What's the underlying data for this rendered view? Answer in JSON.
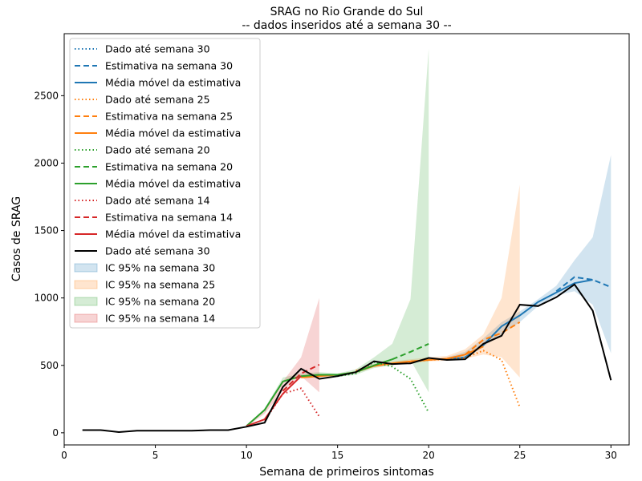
{
  "chart_data": {
    "type": "line",
    "title": "SRAG no Rio Grande do Sul",
    "subtitle": "-- dados inseridos até a semana 30 --",
    "xlabel": "Semana de primeiros sintomas",
    "ylabel": "Casos de SRAG",
    "xlim": [
      0,
      31
    ],
    "ylim": [
      -90,
      2960
    ],
    "xticks": [
      0,
      5,
      10,
      15,
      20,
      25,
      30
    ],
    "yticks": [
      0,
      500,
      1000,
      1500,
      2000,
      2500
    ],
    "grid": false,
    "legend_position": "top-left",
    "colors": {
      "w30": "#1f77b4",
      "w25": "#ff7f0e",
      "w20": "#2ca02c",
      "w14": "#d62728",
      "final": "#000000"
    },
    "bands": [
      {
        "name": "IC 95% na semana 30",
        "color": "#1f77b4",
        "x": [
          21,
          22,
          23,
          24,
          25,
          26,
          27,
          28,
          29,
          30
        ],
        "lower": [
          540,
          545,
          640,
          730,
          820,
          940,
          1020,
          1050,
          950,
          590
        ],
        "upper": [
          560,
          600,
          700,
          820,
          900,
          990,
          1090,
          1280,
          1450,
          2060
        ]
      },
      {
        "name": "IC 95% na semana 25",
        "color": "#ff7f0e",
        "x": [
          16,
          17,
          18,
          19,
          20,
          21,
          22,
          23,
          24,
          25
        ],
        "lower": [
          450,
          490,
          505,
          520,
          530,
          535,
          550,
          580,
          560,
          410
        ],
        "upper": [
          470,
          510,
          530,
          545,
          560,
          570,
          620,
          730,
          1000,
          1840
        ]
      },
      {
        "name": "IC 95% na semana 20",
        "color": "#2ca02c",
        "x": [
          11,
          12,
          13,
          14,
          15,
          16,
          17,
          18,
          19,
          20
        ],
        "lower": [
          150,
          380,
          410,
          420,
          415,
          430,
          480,
          500,
          540,
          300
        ],
        "upper": [
          180,
          410,
          440,
          450,
          440,
          470,
          560,
          660,
          990,
          2850
        ]
      },
      {
        "name": "IC 95% na semana 14",
        "color": "#d62728",
        "x": [
          10,
          11,
          12,
          13,
          14
        ],
        "lower": [
          45,
          140,
          310,
          420,
          300
        ],
        "upper": [
          60,
          160,
          380,
          560,
          1000
        ]
      }
    ],
    "series": [
      {
        "name": "Dado até semana 30",
        "color": "#1f77b4",
        "dash": "dotted",
        "x": [],
        "y": []
      },
      {
        "name": "Estimativa na semana 30",
        "color": "#1f77b4",
        "dash": "dashed",
        "x": [
          27,
          28,
          29,
          30
        ],
        "y": [
          1050,
          1155,
          1135,
          1080
        ]
      },
      {
        "name": "Média móvel da estimativa",
        "color": "#1f77b4",
        "dash": "solid",
        "x": [
          21,
          22,
          23,
          24,
          25,
          26,
          27,
          28,
          29
        ],
        "y": [
          545,
          560,
          650,
          790,
          870,
          970,
          1040,
          1110,
          1135
        ]
      },
      {
        "name": "Dado até semana 25",
        "color": "#ff7f0e",
        "dash": "dotted",
        "x": [
          16,
          17,
          18,
          19,
          20,
          21,
          22,
          23,
          24,
          25
        ],
        "y": [
          460,
          500,
          510,
          525,
          540,
          545,
          555,
          610,
          540,
          190
        ]
      },
      {
        "name": "Estimativa na semana 25",
        "color": "#ff7f0e",
        "dash": "dashed",
        "x": [
          22,
          23,
          24,
          25
        ],
        "y": [
          580,
          690,
          740,
          820
        ]
      },
      {
        "name": "Média móvel da estimativa",
        "color": "#ff7f0e",
        "dash": "solid",
        "x": [
          13,
          14,
          15,
          16,
          17,
          18,
          19,
          20,
          21,
          22,
          23
        ],
        "y": [
          410,
          420,
          430,
          450,
          495,
          515,
          530,
          540,
          550,
          580,
          640
        ]
      },
      {
        "name": "Dado até semana 20",
        "color": "#2ca02c",
        "dash": "dotted",
        "x": [
          15,
          16,
          17,
          18,
          19,
          20
        ],
        "y": [
          420,
          440,
          525,
          490,
          400,
          150
        ]
      },
      {
        "name": "Estimativa na semana 20",
        "color": "#2ca02c",
        "dash": "dashed",
        "x": [
          18,
          19,
          20
        ],
        "y": [
          545,
          600,
          660
        ]
      },
      {
        "name": "Média móvel da estimativa",
        "color": "#2ca02c",
        "dash": "solid",
        "x": [
          10,
          11,
          12,
          13,
          14,
          15,
          16,
          17,
          18
        ],
        "y": [
          50,
          170,
          380,
          420,
          430,
          430,
          450,
          500,
          545
        ]
      },
      {
        "name": "Dado até semana 14",
        "color": "#d62728",
        "dash": "dotted",
        "x": [
          11,
          12,
          13,
          14
        ],
        "y": [
          90,
          290,
          330,
          120
        ]
      },
      {
        "name": "Estimativa na semana 14",
        "color": "#d62728",
        "dash": "dashed",
        "x": [
          12,
          13,
          14
        ],
        "y": [
          310,
          440,
          505
        ]
      },
      {
        "name": "Média móvel da estimativa",
        "color": "#d62728",
        "dash": "solid",
        "x": [
          10,
          11,
          12,
          13
        ],
        "y": [
          50,
          100,
          290,
          420
        ]
      },
      {
        "name": "Dado até semana 30",
        "color": "#000000",
        "dash": "solid",
        "x": [
          1,
          2,
          3,
          4,
          5,
          6,
          7,
          8,
          9,
          10,
          11,
          12,
          13,
          14,
          15,
          16,
          17,
          18,
          19,
          20,
          21,
          22,
          23,
          24,
          25,
          26,
          27,
          28,
          29,
          30
        ],
        "y": [
          20,
          20,
          5,
          15,
          15,
          15,
          15,
          20,
          20,
          45,
          75,
          340,
          475,
          400,
          420,
          450,
          530,
          510,
          515,
          555,
          540,
          545,
          660,
          720,
          950,
          940,
          1005,
          1100,
          905,
          390
        ]
      }
    ]
  }
}
